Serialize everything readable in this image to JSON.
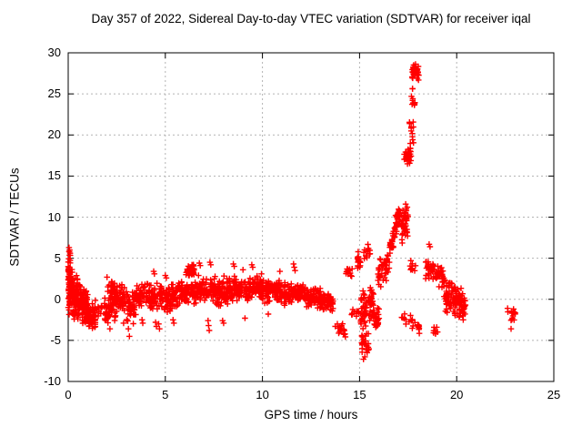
{
  "chart_data": {
    "type": "scatter",
    "title": "Day 357 of 2022, Sidereal Day-to-day VTEC variation (SDTVAR) for receiver iqal",
    "xlabel": "GPS time / hours",
    "ylabel": "SDTVAR / TECUs",
    "xlim": [
      0,
      25
    ],
    "ylim": [
      -10,
      30
    ],
    "xticks": [
      0,
      5,
      10,
      15,
      20,
      25
    ],
    "yticks": [
      -10,
      -5,
      0,
      5,
      10,
      15,
      20,
      25,
      30
    ],
    "grid": true,
    "legend": "none",
    "marker": "plus-cross",
    "marker_color": "#ff0000",
    "grid_color": "#b3b3b3",
    "axis_color": "#000000",
    "clusters_format": "Dense scatter approximated as clusters: [x_start_hr, x_end_hr, y_center_at_start_TECU, y_center_at_end_TECU, y_halfspread_at_start, y_halfspread_at_end, n_points]; y spread is triangular (denser at center).",
    "clusters": [
      [
        0.0,
        0.12,
        1.85,
        1.85,
        4.45,
        4.45,
        55
      ],
      [
        0.05,
        0.5,
        1.0,
        0.3,
        3.6,
        2.8,
        95
      ],
      [
        0.5,
        1.0,
        -0.3,
        -1.0,
        2.6,
        2.4,
        110
      ],
      [
        1.0,
        1.4,
        -1.9,
        -2.3,
        1.7,
        1.7,
        60
      ],
      [
        1.35,
        1.75,
        -1.0,
        -1.2,
        1.3,
        1.3,
        14
      ],
      [
        1.85,
        2.45,
        -0.4,
        -0.5,
        3.0,
        3.0,
        70
      ],
      [
        2.35,
        3.0,
        0.3,
        0.2,
        2.0,
        2.0,
        60
      ],
      [
        3.0,
        3.5,
        -0.9,
        -1.0,
        2.1,
        2.1,
        50
      ],
      [
        3.5,
        4.2,
        0.5,
        0.6,
        1.6,
        1.6,
        60
      ],
      [
        4.2,
        4.95,
        0.4,
        0.4,
        1.9,
        1.9,
        65
      ],
      [
        4.95,
        5.6,
        0.2,
        0.3,
        1.9,
        1.9,
        65
      ],
      [
        5.6,
        6.5,
        0.7,
        0.9,
        1.6,
        1.6,
        70
      ],
      [
        6.05,
        6.5,
        3.4,
        3.5,
        0.9,
        0.9,
        40
      ],
      [
        6.5,
        7.6,
        1.1,
        1.0,
        1.9,
        1.9,
        100
      ],
      [
        7.6,
        8.25,
        0.8,
        1.0,
        2.0,
        2.0,
        70
      ],
      [
        8.25,
        9.4,
        1.4,
        1.2,
        1.7,
        1.7,
        110
      ],
      [
        9.4,
        10.1,
        1.6,
        1.3,
        1.5,
        1.5,
        70
      ],
      [
        10.1,
        11.2,
        1.0,
        0.8,
        1.6,
        1.6,
        100
      ],
      [
        11.2,
        12.2,
        0.7,
        0.6,
        1.5,
        1.5,
        95
      ],
      [
        12.2,
        13.0,
        0.4,
        0.1,
        1.5,
        1.5,
        80
      ],
      [
        13.0,
        13.65,
        -0.1,
        -0.5,
        1.4,
        1.2,
        55
      ],
      [
        13.85,
        14.3,
        -3.0,
        -4.9,
        1.4,
        1.4,
        16
      ],
      [
        14.3,
        14.65,
        3.3,
        3.3,
        0.55,
        0.55,
        14
      ],
      [
        14.85,
        15.05,
        4.6,
        4.6,
        1.8,
        1.8,
        18
      ],
      [
        14.55,
        15.0,
        -1.6,
        -1.6,
        1.1,
        1.1,
        10
      ],
      [
        15.05,
        15.35,
        -1.5,
        -1.5,
        3.2,
        3.2,
        40
      ],
      [
        15.1,
        15.5,
        -5.6,
        -5.6,
        1.8,
        1.8,
        25
      ],
      [
        15.2,
        15.55,
        5.8,
        5.8,
        1.3,
        1.3,
        12
      ],
      [
        15.45,
        15.75,
        -0.5,
        -0.5,
        3.0,
        3.0,
        35
      ],
      [
        15.7,
        16.0,
        -2.5,
        -2.6,
        1.8,
        1.8,
        30
      ],
      [
        15.95,
        16.55,
        2.8,
        4.6,
        1.9,
        1.9,
        45
      ],
      [
        16.55,
        17.0,
        6.0,
        9.8,
        1.8,
        1.8,
        40
      ],
      [
        16.95,
        17.1,
        10.0,
        10.0,
        1.6,
        1.6,
        12
      ],
      [
        17.15,
        17.5,
        9.5,
        9.5,
        3.0,
        3.0,
        45
      ],
      [
        17.3,
        17.68,
        17.4,
        17.4,
        1.1,
        1.1,
        32
      ],
      [
        17.55,
        17.8,
        20.7,
        20.7,
        2.3,
        2.3,
        12
      ],
      [
        17.62,
        17.85,
        24.5,
        24.5,
        1.7,
        1.7,
        10
      ],
      [
        17.7,
        18.05,
        27.6,
        27.6,
        1.2,
        1.2,
        42
      ],
      [
        17.15,
        18.1,
        -2.0,
        -3.3,
        1.0,
        1.0,
        20
      ],
      [
        17.6,
        17.95,
        4.2,
        4.2,
        1.0,
        1.0,
        10
      ],
      [
        18.4,
        19.35,
        3.9,
        2.6,
        1.9,
        1.6,
        65
      ],
      [
        18.8,
        19.05,
        -3.9,
        -3.9,
        0.7,
        0.7,
        8
      ],
      [
        19.35,
        20.45,
        0.5,
        -0.9,
        2.2,
        2.0,
        115
      ],
      [
        22.55,
        23.05,
        -1.8,
        -1.8,
        0.8,
        0.8,
        14
      ]
    ],
    "outlier_points": [
      [
        0.04,
        6.3
      ],
      [
        0.07,
        6.0
      ],
      [
        0.1,
        5.6
      ],
      [
        2.0,
        2.7
      ],
      [
        2.15,
        -3.6
      ],
      [
        2.85,
        -2.9
      ],
      [
        3.15,
        -4.5
      ],
      [
        3.1,
        -3.6
      ],
      [
        3.8,
        -2.5
      ],
      [
        3.84,
        -2.9
      ],
      [
        4.4,
        3.4
      ],
      [
        4.44,
        3.1
      ],
      [
        4.5,
        -2.8
      ],
      [
        4.54,
        -3.3
      ],
      [
        4.66,
        -3.0
      ],
      [
        4.7,
        -3.6
      ],
      [
        5.0,
        2.9
      ],
      [
        5.05,
        2.6
      ],
      [
        5.4,
        -2.5
      ],
      [
        5.44,
        -2.9
      ],
      [
        6.75,
        4.4
      ],
      [
        6.8,
        4.1
      ],
      [
        7.3,
        4.5
      ],
      [
        7.34,
        4.2
      ],
      [
        7.2,
        -2.6
      ],
      [
        7.23,
        -3.2
      ],
      [
        7.26,
        -3.8
      ],
      [
        7.95,
        -2.6
      ],
      [
        8.0,
        -2.9
      ],
      [
        8.5,
        4.3
      ],
      [
        8.55,
        4.0
      ],
      [
        9.0,
        3.6
      ],
      [
        9.1,
        -2.3
      ],
      [
        9.45,
        4.2
      ],
      [
        9.5,
        3.9
      ],
      [
        9.95,
        3.1
      ],
      [
        10.3,
        -1.8
      ],
      [
        10.9,
        3.4
      ],
      [
        11.6,
        4.3
      ],
      [
        11.64,
        3.9
      ],
      [
        11.68,
        3.5
      ],
      [
        13.75,
        -3.3
      ],
      [
        15.2,
        -7.3
      ],
      [
        15.27,
        -7.0
      ],
      [
        18.58,
        6.7
      ],
      [
        18.63,
        6.4
      ],
      [
        22.8,
        -3.6
      ]
    ]
  }
}
